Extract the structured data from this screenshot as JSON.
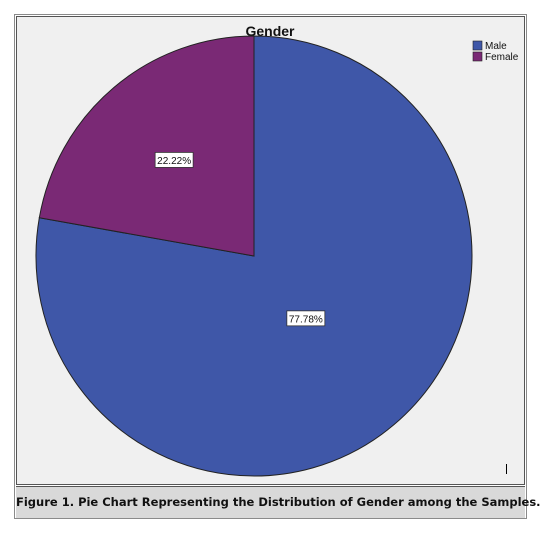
{
  "chart_data": {
    "type": "pie",
    "title": "Gender",
    "categories": [
      "Male",
      "Female"
    ],
    "values": [
      77.78,
      22.22
    ],
    "data_labels": [
      "77.78%",
      "22.22%"
    ],
    "colors": [
      "#3f57a8",
      "#7a2975"
    ],
    "legend": {
      "placement": "top-right",
      "entries": [
        "Male",
        "Female"
      ]
    },
    "grid": false
  },
  "caption": "Figure 1. Pie Chart Representing the Distribution of Gender among the Samples."
}
